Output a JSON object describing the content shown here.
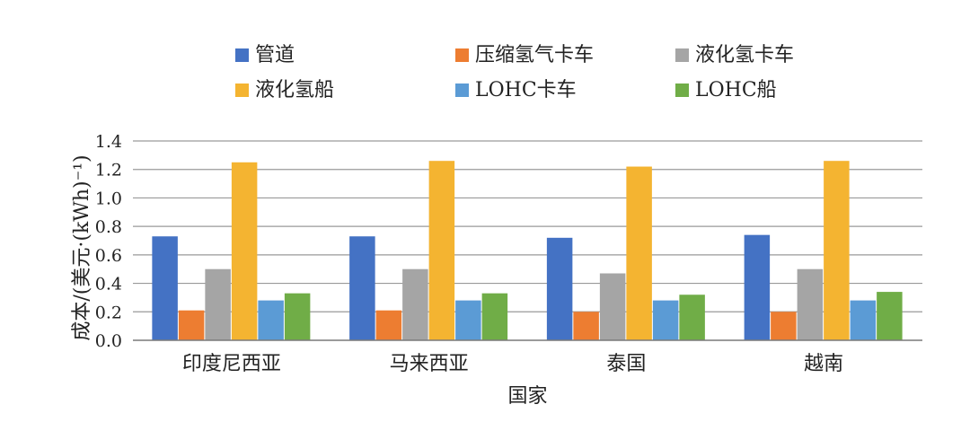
{
  "chart_data": {
    "type": "bar",
    "title": "",
    "xlabel": "国家",
    "ylabel": "成本/(美元·(kWh)⁻¹)",
    "ylim": [
      0,
      1.4
    ],
    "yticks": [
      "0.0",
      "0.2",
      "0.4",
      "0.6",
      "0.8",
      "1.0",
      "1.2",
      "1.4"
    ],
    "grid": true,
    "legend_position": "top",
    "categories": [
      "印度尼西亚",
      "马来西亚",
      "泰国",
      "越南"
    ],
    "series": [
      {
        "name": "管道",
        "color": "#4472c4",
        "values": [
          0.73,
          0.73,
          0.72,
          0.74
        ]
      },
      {
        "name": "压缩氢气卡车",
        "color": "#ed7d31",
        "values": [
          0.21,
          0.21,
          0.2,
          0.2
        ]
      },
      {
        "name": "液化氢卡车",
        "color": "#a5a5a5",
        "values": [
          0.5,
          0.5,
          0.47,
          0.5
        ]
      },
      {
        "name": "液化氢船",
        "color": "#f4b431",
        "values": [
          1.25,
          1.26,
          1.22,
          1.26
        ]
      },
      {
        "name": "LOHC卡车",
        "color": "#5b9bd5",
        "values": [
          0.28,
          0.28,
          0.28,
          0.28
        ]
      },
      {
        "name": "LOHC船",
        "color": "#70ad47",
        "values": [
          0.33,
          0.33,
          0.32,
          0.34
        ]
      }
    ]
  }
}
